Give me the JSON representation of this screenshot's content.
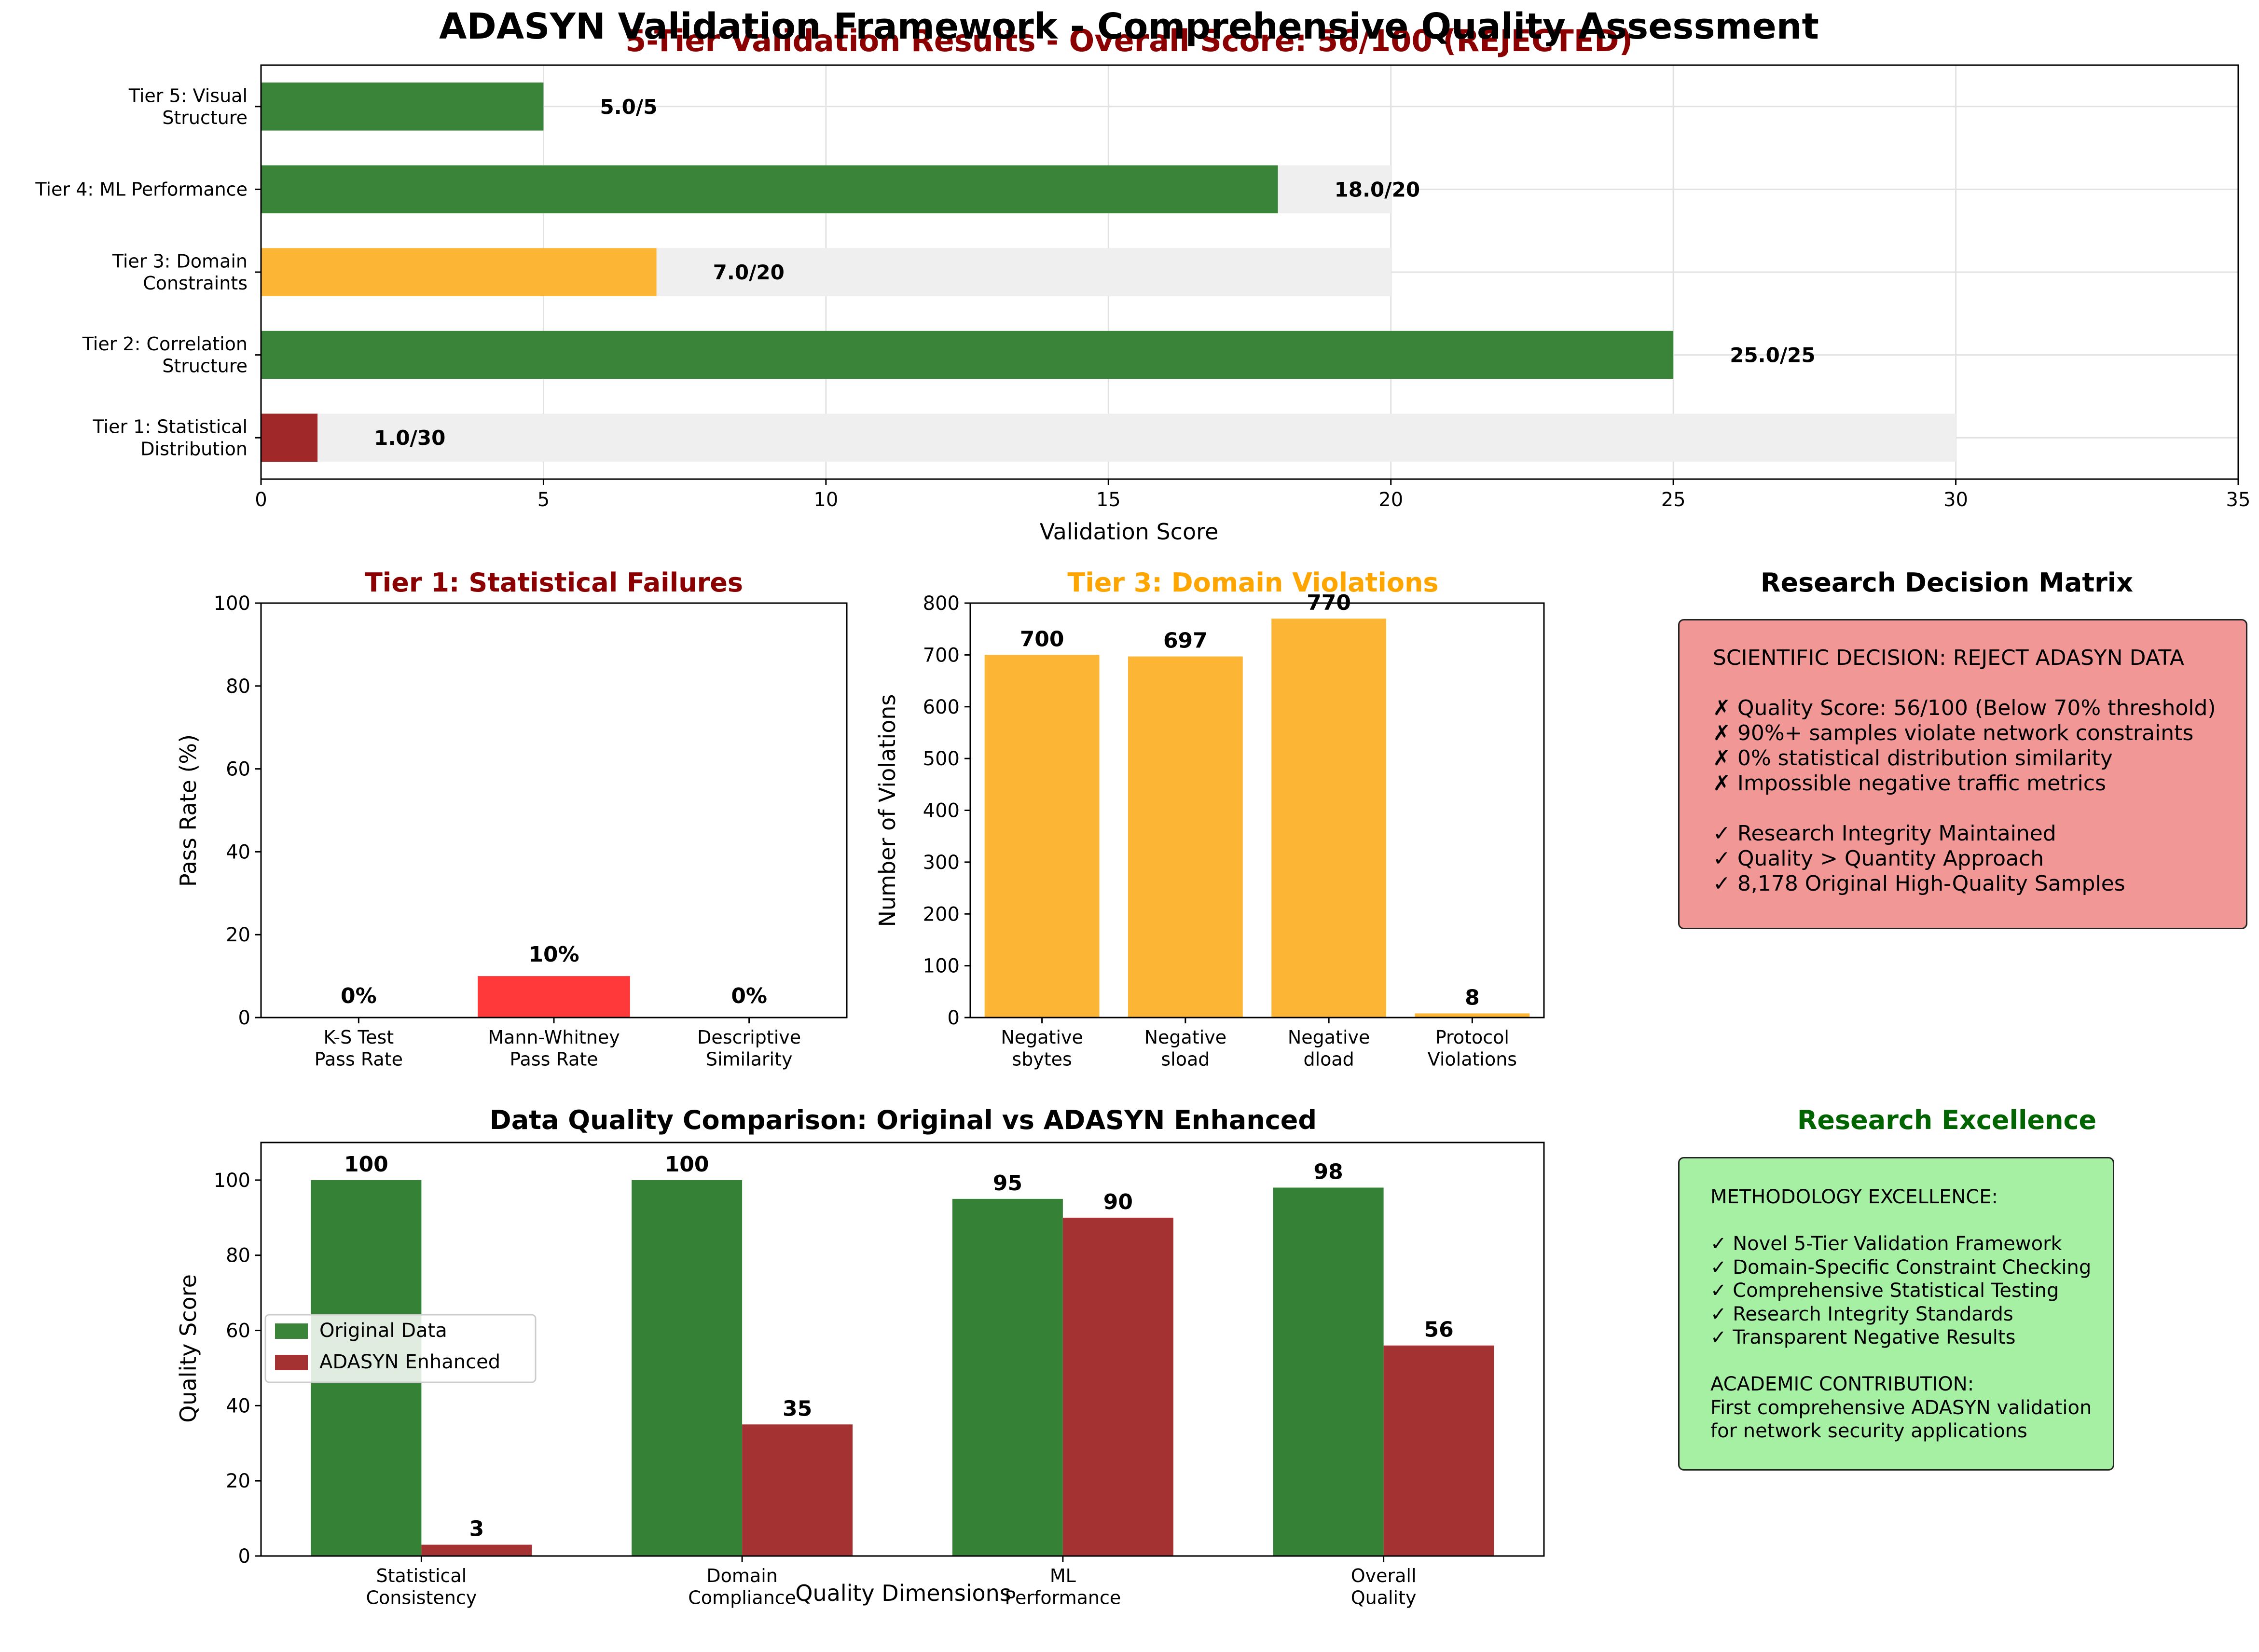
{
  "suptitle": "ADASYN Validation Framework - Comprehensive Quality Assessment",
  "colors": {
    "green": "#2e7d2e",
    "red": "#9b1c1c",
    "orange": "#fdb12b",
    "bright_red": "#ff2e2e",
    "dark_red_title": "#8b0000",
    "orange_title": "#ffa500",
    "green_title": "#006400",
    "background_bar": "#efefef",
    "decision_box": "#f19896",
    "excellence_box": "#a6f0a3"
  },
  "chart_data": [
    {
      "id": "tier_results",
      "type": "bar",
      "orientation": "horizontal",
      "title": "5-Tier Validation Results - Overall Score: 56/100 (REJECTED)",
      "xlabel": "Validation Score",
      "ylabel": "",
      "xlim": [
        0,
        35
      ],
      "xticks": [
        0,
        5,
        10,
        15,
        20,
        25,
        30,
        35
      ],
      "grid": true,
      "categories": [
        "Tier 1: Statistical\nDistribution",
        "Tier 2: Correlation\nStructure",
        "Tier 3: Domain\nConstraints",
        "Tier 4: ML Performance",
        "Tier 5: Visual\nStructure"
      ],
      "values": [
        1.0,
        25.0,
        7.0,
        18.0,
        5.0
      ],
      "max_values": [
        30,
        25,
        20,
        20,
        5
      ],
      "bar_colors": [
        "#9b1c1c",
        "#2e7d2e",
        "#fdb12b",
        "#2e7d2e",
        "#2e7d2e"
      ],
      "data_labels": [
        "1.0/30",
        "25.0/25",
        "7.0/20",
        "18.0/20",
        "5.0/5"
      ]
    },
    {
      "id": "tier1_failures",
      "type": "bar",
      "title": "Tier 1: Statistical Failures",
      "xlabel": "",
      "ylabel": "Pass Rate (%)",
      "ylim": [
        0,
        100
      ],
      "yticks": [
        0,
        20,
        40,
        60,
        80,
        100
      ],
      "grid": false,
      "categories": [
        "K-S Test\nPass Rate",
        "Mann-Whitney\nPass Rate",
        "Descriptive\nSimilarity"
      ],
      "values": [
        0,
        10,
        0
      ],
      "data_labels": [
        "0%",
        "10%",
        "0%"
      ]
    },
    {
      "id": "tier3_violations",
      "type": "bar",
      "title": "Tier 3: Domain Violations",
      "xlabel": "",
      "ylabel": "Number of Violations",
      "ylim": [
        0,
        800
      ],
      "yticks": [
        0,
        100,
        200,
        300,
        400,
        500,
        600,
        700,
        800
      ],
      "grid": false,
      "categories": [
        "Negative\nsbytes",
        "Negative\nsload",
        "Negative\ndload",
        "Protocol\nViolations"
      ],
      "values": [
        700,
        697,
        770,
        8
      ],
      "data_labels": [
        "700",
        "697",
        "770",
        "8"
      ]
    },
    {
      "id": "quality_comparison",
      "type": "bar",
      "title": "Data Quality Comparison: Original vs ADASYN Enhanced",
      "xlabel": "Quality Dimensions",
      "ylabel": "Quality Score",
      "ylim": [
        0,
        110
      ],
      "yticks": [
        0,
        20,
        40,
        60,
        80,
        100
      ],
      "grid": false,
      "legend_position": "center-left",
      "categories": [
        "Statistical\nConsistency",
        "Domain\nCompliance",
        "ML\nPerformance",
        "Overall\nQuality"
      ],
      "series": [
        {
          "name": "Original Data",
          "values": [
            100,
            100,
            95,
            98
          ],
          "color": "#2e7d2e"
        },
        {
          "name": "ADASYN Enhanced",
          "values": [
            3,
            35,
            90,
            56
          ],
          "color": "#9b1c1c"
        }
      ]
    }
  ],
  "decision_matrix": {
    "title": "Research Decision Matrix",
    "lines": [
      "SCIENTIFIC DECISION: REJECT ADASYN DATA",
      "",
      "✗ Quality Score: 56/100 (Below 70% threshold)",
      "✗ 90%+ samples violate network constraints",
      "✗ 0% statistical distribution similarity",
      "✗ Impossible negative traffic metrics",
      "",
      "✓ Research Integrity Maintained",
      "✓ Quality > Quantity Approach",
      "✓ 8,178 Original High-Quality Samples"
    ]
  },
  "research_excellence": {
    "title": "Research Excellence",
    "lines": [
      "METHODOLOGY EXCELLENCE:",
      "",
      "✓ Novel 5-Tier Validation Framework",
      "✓ Domain-Specific Constraint Checking",
      "✓ Comprehensive Statistical Testing",
      "✓ Research Integrity Standards",
      "✓ Transparent Negative Results",
      "",
      "ACADEMIC CONTRIBUTION:",
      "First comprehensive ADASYN validation",
      "for network security applications"
    ]
  }
}
